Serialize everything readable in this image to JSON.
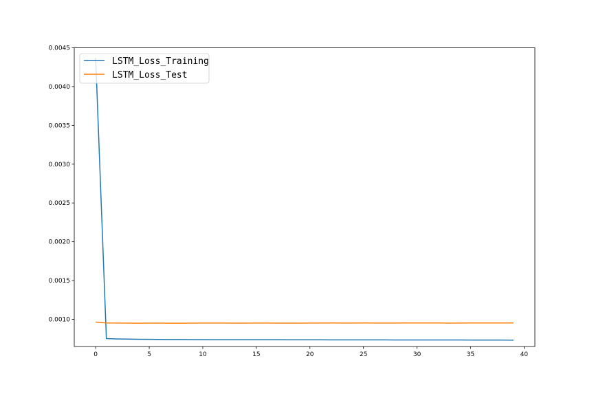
{
  "chart_data": {
    "type": "line",
    "title": "",
    "xlabel": "",
    "ylabel": "",
    "xlim": [
      -2,
      41
    ],
    "ylim": [
      0.00065,
      0.0045
    ],
    "xticks": [
      0,
      5,
      10,
      15,
      20,
      25,
      30,
      35,
      40
    ],
    "xtick_labels": [
      "0",
      "5",
      "10",
      "15",
      "20",
      "25",
      "30",
      "35",
      "40"
    ],
    "yticks": [
      0.001,
      0.0015,
      0.002,
      0.0025,
      0.003,
      0.0035,
      0.004,
      0.0045
    ],
    "ytick_labels": [
      "0.0010",
      "0.0015",
      "0.0020",
      "0.0025",
      "0.0030",
      "0.0035",
      "0.0040",
      "0.0045"
    ],
    "grid": false,
    "legend_position": "top-left",
    "x": [
      0,
      1,
      2,
      3,
      4,
      5,
      6,
      7,
      8,
      9,
      10,
      11,
      12,
      13,
      14,
      15,
      16,
      17,
      18,
      19,
      20,
      21,
      22,
      23,
      24,
      25,
      26,
      27,
      28,
      29,
      30,
      31,
      32,
      33,
      34,
      35,
      36,
      37,
      38,
      39
    ],
    "series": [
      {
        "name": "LSTM_Loss_Training",
        "color": "#1f77b4",
        "values": [
          0.00437,
          0.000752,
          0.000748,
          0.000745,
          0.000743,
          0.000742,
          0.000741,
          0.00074,
          0.00074,
          0.000739,
          0.000739,
          0.000738,
          0.000738,
          0.000738,
          0.000737,
          0.000737,
          0.000737,
          0.000737,
          0.000736,
          0.000736,
          0.000736,
          0.000736,
          0.000735,
          0.000735,
          0.000735,
          0.000735,
          0.000735,
          0.000735,
          0.000734,
          0.000734,
          0.000734,
          0.000734,
          0.000734,
          0.000734,
          0.000734,
          0.000733,
          0.000733,
          0.000733,
          0.000733,
          0.000732
        ]
      },
      {
        "name": "LSTM_Loss_Test",
        "color": "#ff7f0e",
        "values": [
          0.000965,
          0.000953,
          0.000952,
          0.000951,
          0.00095,
          0.000951,
          0.000951,
          0.00095,
          0.00095,
          0.000951,
          0.000952,
          0.000952,
          0.000952,
          0.000951,
          0.000951,
          0.000952,
          0.000952,
          0.000951,
          0.000951,
          0.000951,
          0.000952,
          0.000952,
          0.000953,
          0.000952,
          0.000952,
          0.000953,
          0.000952,
          0.000952,
          0.000952,
          0.000953,
          0.000953,
          0.000953,
          0.000953,
          0.000951,
          0.000952,
          0.000953,
          0.000953,
          0.000953,
          0.000953,
          0.000953
        ]
      }
    ]
  }
}
